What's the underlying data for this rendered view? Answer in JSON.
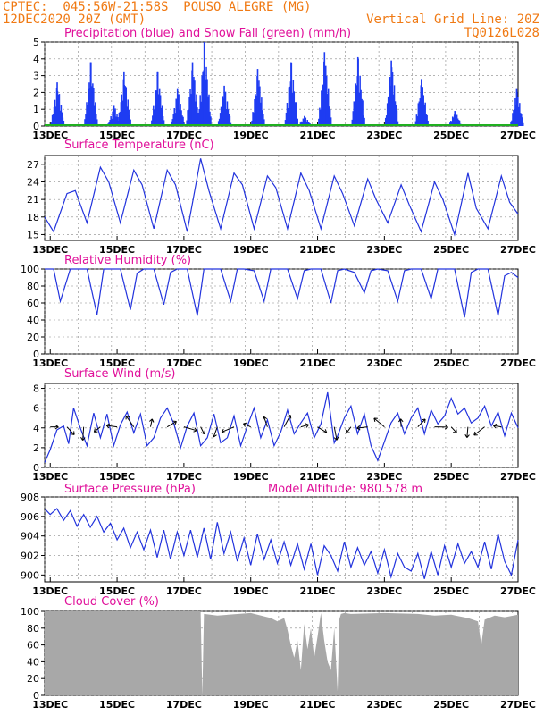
{
  "header": {
    "line1_left": "CPTEC:  045:56W-21:58S  POUSO ALEGRE (MG)",
    "line2_left": "12DEC2020 20Z (GMT)",
    "line2_right": "Vertical Grid Line: 20Z",
    "line3_right": "TQ0126L028"
  },
  "x_ticks": [
    "13DEC",
    "15DEC",
    "17DEC",
    "19DEC",
    "21DEC",
    "23DEC",
    "25DEC",
    "27DEC"
  ],
  "colors": {
    "header": "#f07a14",
    "title": "#e0109a",
    "line": "#2233dd",
    "precip": "#1f3cf2",
    "snow": "#20b020",
    "cloud": "#a8a8a8",
    "grid": "#888888"
  },
  "chart_data": [
    {
      "id": "precip",
      "type": "bar",
      "title": "Precipitation (blue) and Snow Fall (green) (mm/h)",
      "ylim": [
        0,
        5
      ],
      "yticks": [
        0,
        1,
        2,
        3,
        4,
        5
      ],
      "x_range_days": [
        12.833,
        27.0
      ],
      "series": [
        {
          "name": "Precipitation",
          "color": "#1f3cf2",
          "events": [
            {
              "day": 13.2,
              "peak": 2.6
            },
            {
              "day": 14.2,
              "peak": 3.8
            },
            {
              "day": 14.9,
              "peak": 1.2
            },
            {
              "day": 15.2,
              "peak": 3.2
            },
            {
              "day": 16.2,
              "peak": 3.2
            },
            {
              "day": 16.8,
              "peak": 2.2
            },
            {
              "day": 17.25,
              "peak": 3.8
            },
            {
              "day": 17.6,
              "peak": 5.0
            },
            {
              "day": 18.2,
              "peak": 2.4
            },
            {
              "day": 19.2,
              "peak": 3.4
            },
            {
              "day": 20.2,
              "peak": 3.8
            },
            {
              "day": 20.6,
              "peak": 0.6
            },
            {
              "day": 21.2,
              "peak": 4.4
            },
            {
              "day": 22.2,
              "peak": 4.1
            },
            {
              "day": 23.2,
              "peak": 3.9
            },
            {
              "day": 24.1,
              "peak": 2.8
            },
            {
              "day": 25.1,
              "peak": 0.9
            },
            {
              "day": 26.95,
              "peak": 2.2
            }
          ]
        },
        {
          "name": "Snow Fall",
          "color": "#20b020",
          "values_constant": 0
        }
      ]
    },
    {
      "id": "temp",
      "type": "line",
      "title": "Surface Temperature (nC)",
      "ylim": [
        14,
        28.5
      ],
      "yticks": [
        15,
        18,
        21,
        24,
        27
      ],
      "x": [
        12.833,
        13.1,
        13.5,
        13.75,
        14.1,
        14.5,
        14.75,
        15.1,
        15.5,
        15.75,
        16.1,
        16.5,
        16.75,
        17.1,
        17.5,
        17.75,
        18.1,
        18.5,
        18.75,
        19.1,
        19.5,
        19.75,
        20.1,
        20.5,
        20.75,
        21.1,
        21.5,
        21.75,
        22.1,
        22.5,
        22.75,
        23.1,
        23.5,
        23.75,
        24.1,
        24.5,
        24.75,
        25.1,
        25.5,
        25.75,
        26.1,
        26.5,
        26.75,
        27.0
      ],
      "y": [
        18,
        15.5,
        22,
        22.5,
        17,
        26.5,
        24,
        17,
        26,
        23.5,
        16,
        26,
        23.5,
        15.5,
        28,
        22.5,
        16,
        25.5,
        23.5,
        16,
        25,
        23,
        16,
        25.5,
        22.5,
        16,
        25,
        22,
        16.5,
        24.5,
        21,
        17,
        23.5,
        20,
        15.5,
        24,
        21,
        15,
        25.5,
        19.5,
        16,
        25,
        20.5,
        18.5
      ]
    },
    {
      "id": "rh",
      "type": "line",
      "title": "Relative Humidity (%)",
      "ylim": [
        0,
        100
      ],
      "yticks": [
        0,
        20,
        40,
        60,
        80,
        100
      ],
      "x": [
        12.833,
        13.1,
        13.3,
        13.6,
        13.8,
        14.1,
        14.4,
        14.6,
        14.8,
        15.1,
        15.4,
        15.6,
        15.8,
        16.1,
        16.4,
        16.6,
        16.8,
        17.1,
        17.4,
        17.6,
        17.8,
        18.1,
        18.4,
        18.6,
        18.8,
        19.1,
        19.4,
        19.6,
        19.8,
        20.1,
        20.4,
        20.6,
        20.8,
        21.1,
        21.4,
        21.6,
        21.8,
        22.1,
        22.4,
        22.6,
        22.8,
        23.1,
        23.4,
        23.6,
        23.8,
        24.1,
        24.4,
        24.6,
        24.8,
        25.1,
        25.4,
        25.6,
        25.8,
        26.1,
        26.4,
        26.6,
        26.8,
        27.0
      ],
      "y": [
        100,
        100,
        62,
        100,
        100,
        100,
        46,
        100,
        100,
        100,
        52,
        95,
        100,
        100,
        58,
        96,
        100,
        100,
        45,
        100,
        100,
        100,
        62,
        100,
        100,
        98,
        62,
        100,
        100,
        100,
        65,
        98,
        100,
        100,
        60,
        98,
        100,
        96,
        72,
        98,
        100,
        98,
        62,
        98,
        100,
        100,
        65,
        100,
        100,
        100,
        43,
        96,
        100,
        100,
        45,
        92,
        96,
        90
      ]
    },
    {
      "id": "wind",
      "type": "line",
      "title": "Surface Wind (m/s)",
      "ylim": [
        0,
        8.5
      ],
      "yticks": [
        0,
        2,
        4,
        6,
        8
      ],
      "x": [
        12.833,
        13.0,
        13.2,
        13.4,
        13.55,
        13.7,
        13.9,
        14.1,
        14.3,
        14.5,
        14.7,
        14.9,
        15.1,
        15.3,
        15.5,
        15.7,
        15.9,
        16.1,
        16.3,
        16.5,
        16.7,
        16.9,
        17.1,
        17.3,
        17.5,
        17.7,
        17.9,
        18.1,
        18.3,
        18.5,
        18.7,
        18.9,
        19.1,
        19.3,
        19.5,
        19.7,
        19.9,
        20.1,
        20.3,
        20.5,
        20.7,
        20.9,
        21.1,
        21.3,
        21.5,
        21.6,
        21.8,
        22.0,
        22.2,
        22.4,
        22.6,
        22.8,
        23.0,
        23.2,
        23.4,
        23.6,
        23.8,
        24.0,
        24.2,
        24.4,
        24.6,
        24.8,
        25.0,
        25.2,
        25.4,
        25.6,
        25.8,
        26.0,
        26.2,
        26.4,
        26.6,
        26.8,
        27.0
      ],
      "y": [
        0.5,
        1.8,
        3.8,
        4.2,
        2.4,
        6.0,
        4.0,
        2.2,
        5.5,
        3.0,
        5.4,
        2.2,
        4.3,
        5.6,
        3.5,
        5.4,
        2.2,
        3.0,
        5.0,
        6.0,
        4.4,
        2.0,
        4.2,
        5.5,
        2.2,
        3.0,
        5.4,
        2.5,
        3.0,
        5.2,
        2.2,
        4.2,
        6.0,
        3.0,
        4.8,
        2.2,
        3.6,
        5.8,
        3.4,
        4.5,
        5.5,
        3.0,
        4.4,
        7.6,
        2.5,
        3.2,
        5.0,
        6.2,
        3.4,
        5.4,
        2.2,
        0.7,
        2.6,
        4.5,
        5.5,
        3.4,
        5.0,
        6.0,
        3.4,
        5.8,
        4.4,
        5.2,
        7.0,
        5.4,
        6.0,
        4.5,
        5.0,
        6.2,
        4.2,
        5.6,
        3.2,
        5.5,
        4.0
      ]
    },
    {
      "id": "pressure",
      "type": "line",
      "title": "Surface Pressure (hPa)",
      "annotation": "Model Altitude: 980.578 m",
      "ylim": [
        899.3,
        908
      ],
      "yticks": [
        900,
        902,
        904,
        906,
        908
      ],
      "x": [
        12.833,
        13.0,
        13.2,
        13.4,
        13.6,
        13.8,
        14.0,
        14.2,
        14.4,
        14.6,
        14.8,
        15.0,
        15.2,
        15.4,
        15.6,
        15.8,
        16.0,
        16.2,
        16.4,
        16.6,
        16.8,
        17.0,
        17.2,
        17.4,
        17.6,
        17.8,
        18.0,
        18.2,
        18.4,
        18.6,
        18.8,
        19.0,
        19.2,
        19.4,
        19.6,
        19.8,
        20.0,
        20.2,
        20.4,
        20.6,
        20.8,
        21.0,
        21.2,
        21.4,
        21.6,
        21.8,
        22.0,
        22.2,
        22.4,
        22.6,
        22.8,
        23.0,
        23.2,
        23.4,
        23.6,
        23.8,
        24.0,
        24.2,
        24.4,
        24.6,
        24.8,
        25.0,
        25.2,
        25.4,
        25.6,
        25.8,
        26.0,
        26.2,
        26.4,
        26.6,
        26.8,
        27.0
      ],
      "y": [
        906.8,
        906.2,
        906.8,
        905.6,
        906.6,
        905.0,
        906.2,
        904.9,
        906.0,
        904.4,
        905.3,
        903.6,
        904.8,
        902.8,
        904.4,
        902.6,
        904.6,
        901.8,
        904.6,
        901.6,
        904.4,
        902.0,
        904.6,
        901.8,
        904.8,
        901.6,
        905.4,
        902.2,
        904.4,
        901.4,
        903.8,
        901.0,
        904.2,
        901.6,
        903.6,
        901.2,
        903.4,
        901.0,
        903.2,
        900.6,
        903.2,
        900.0,
        903.0,
        902.0,
        900.4,
        903.4,
        900.8,
        902.8,
        901.0,
        902.4,
        900.2,
        902.6,
        899.8,
        902.2,
        900.8,
        900.4,
        902.2,
        899.6,
        902.4,
        900.0,
        903.0,
        900.8,
        903.2,
        901.2,
        902.4,
        900.8,
        903.4,
        900.6,
        904.2,
        901.4,
        900.0,
        903.6
      ]
    },
    {
      "id": "cloud",
      "type": "area",
      "title": "Cloud Cover (%)",
      "ylim": [
        0,
        100
      ],
      "yticks": [
        0,
        20,
        40,
        60,
        80,
        100
      ],
      "x": [
        12.833,
        17.4,
        17.5,
        17.55,
        17.6,
        18.0,
        19.0,
        19.6,
        19.8,
        20.0,
        20.1,
        20.2,
        20.3,
        20.4,
        20.5,
        20.6,
        20.7,
        20.8,
        20.9,
        21.0,
        21.1,
        21.2,
        21.3,
        21.4,
        21.5,
        21.6,
        21.65,
        21.7,
        21.8,
        22.0,
        23.0,
        24.0,
        24.5,
        25.0,
        25.5,
        25.8,
        25.9,
        26.0,
        26.3,
        26.6,
        27.0
      ],
      "y": [
        100,
        100,
        100,
        0,
        97,
        95,
        98,
        92,
        88,
        92,
        78,
        60,
        45,
        65,
        30,
        85,
        55,
        80,
        45,
        70,
        98,
        65,
        40,
        30,
        80,
        5,
        90,
        97,
        98,
        97,
        98,
        97,
        95,
        96,
        92,
        88,
        60,
        90,
        95,
        93,
        96
      ]
    }
  ]
}
